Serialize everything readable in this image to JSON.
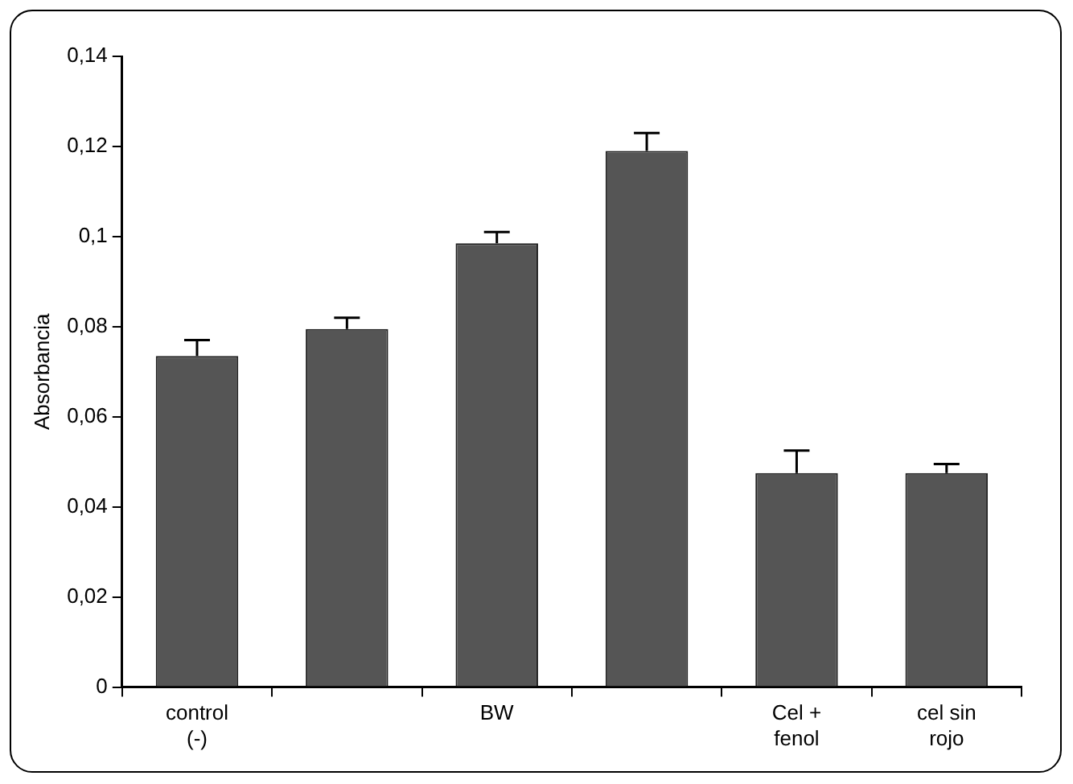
{
  "chart_data": {
    "type": "bar",
    "ylabel": "Absorbancia",
    "categories": [
      "control (-)",
      null,
      "BW",
      null,
      "Cel + fenol",
      "cel sin rojo"
    ],
    "values": [
      0.0735,
      0.0795,
      0.0985,
      0.119,
      0.0475,
      0.0475
    ],
    "errors": [
      [
        0.0735,
        0.077
      ],
      [
        0.0795,
        0.082
      ],
      [
        0.0985,
        0.101
      ],
      [
        0.119,
        0.123
      ],
      [
        0.0475,
        0.0525
      ],
      [
        0.0475,
        0.0495
      ]
    ],
    "color": "#555555",
    "ylim": [
      0,
      0.14
    ],
    "yticks": [
      0,
      {
        "value": 0.02,
        "label": "0,02"
      },
      {
        "value": 0.04,
        "label": "0,04"
      },
      {
        "value": 0.06,
        "label": "0,06"
      },
      {
        "value": 0.08,
        "label": "0,08"
      },
      {
        "value": 0.1,
        "label": "0,1"
      },
      {
        "value": 0.12,
        "label": "0,12"
      },
      {
        "value": 0.14,
        "label": "0,14"
      }
    ],
    "grid": false,
    "legend": false
  }
}
